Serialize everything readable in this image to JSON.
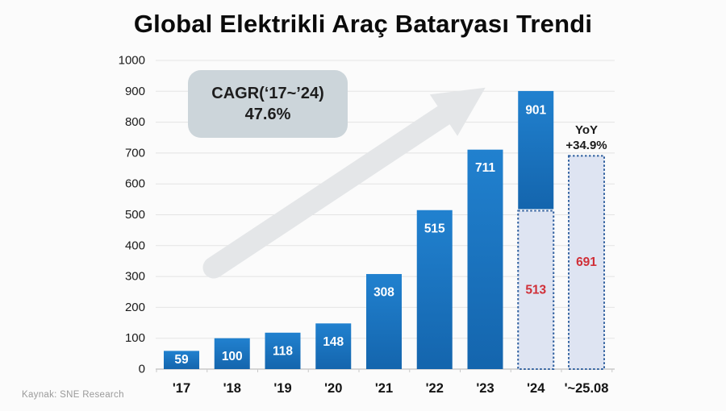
{
  "title": "Global Elektrikli Araç Bataryası Trendi",
  "source": "Kaynak: SNE Research",
  "annotations": {
    "cagr_line1": "CAGR(‘17~’24)",
    "cagr_line2": "47.6%",
    "yoy_line1": "YoY",
    "yoy_line2": "+34.9%"
  },
  "colors": {
    "bar_top": "#2181cf",
    "bar_bottom": "#1465ad",
    "dotted_fill": "#dee4f2",
    "dotted_border": "#30609f",
    "red_label": "#d02f38",
    "white_label": "#ffffff",
    "grid": "#e4e4e4",
    "axis_line": "#c9c9c9",
    "axis_text": "#1a1a1a",
    "arrow": "#e4e6e8",
    "cagr_box_fill": "#ccd5da"
  },
  "chart_data": {
    "type": "bar",
    "title": "Global Elektrikli Araç Bataryası Trendi",
    "categories": [
      "'17",
      "'18",
      "'19",
      "'20",
      "'21",
      "'22",
      "'23",
      "'24",
      "'~25.08"
    ],
    "values": [
      59,
      100,
      118,
      148,
      308,
      515,
      711,
      901,
      691
    ],
    "bars": [
      {
        "category": "'17",
        "value": 59,
        "style": "solid",
        "label_color": "white"
      },
      {
        "category": "'18",
        "value": 100,
        "style": "solid",
        "label_color": "white"
      },
      {
        "category": "'19",
        "value": 118,
        "style": "solid",
        "label_color": "white"
      },
      {
        "category": "'20",
        "value": 148,
        "style": "solid",
        "label_color": "white"
      },
      {
        "category": "'21",
        "value": 308,
        "style": "solid",
        "label_color": "white"
      },
      {
        "category": "'22",
        "value": 515,
        "style": "solid",
        "label_color": "white"
      },
      {
        "category": "'23",
        "value": 711,
        "style": "solid",
        "label_color": "white"
      },
      {
        "category": "'24",
        "value": 901,
        "style": "split",
        "split_value": 513,
        "label_color": "white",
        "split_label_color": "red"
      },
      {
        "category": "'~25.08",
        "value": 691,
        "style": "dotted",
        "label_color": "red"
      }
    ],
    "xlabel": "",
    "ylabel": "",
    "ylim": [
      0,
      1000
    ],
    "yticks": [
      0,
      100,
      200,
      300,
      400,
      500,
      600,
      700,
      800,
      900,
      1000
    ],
    "grid": true,
    "legend": "none",
    "annotations": [
      {
        "type": "box",
        "text": "CAGR(‘17~’24) 47.6%"
      },
      {
        "type": "text",
        "text": "YoY +34.9%"
      },
      {
        "type": "arrow",
        "text": "upward trend arrow"
      }
    ]
  }
}
